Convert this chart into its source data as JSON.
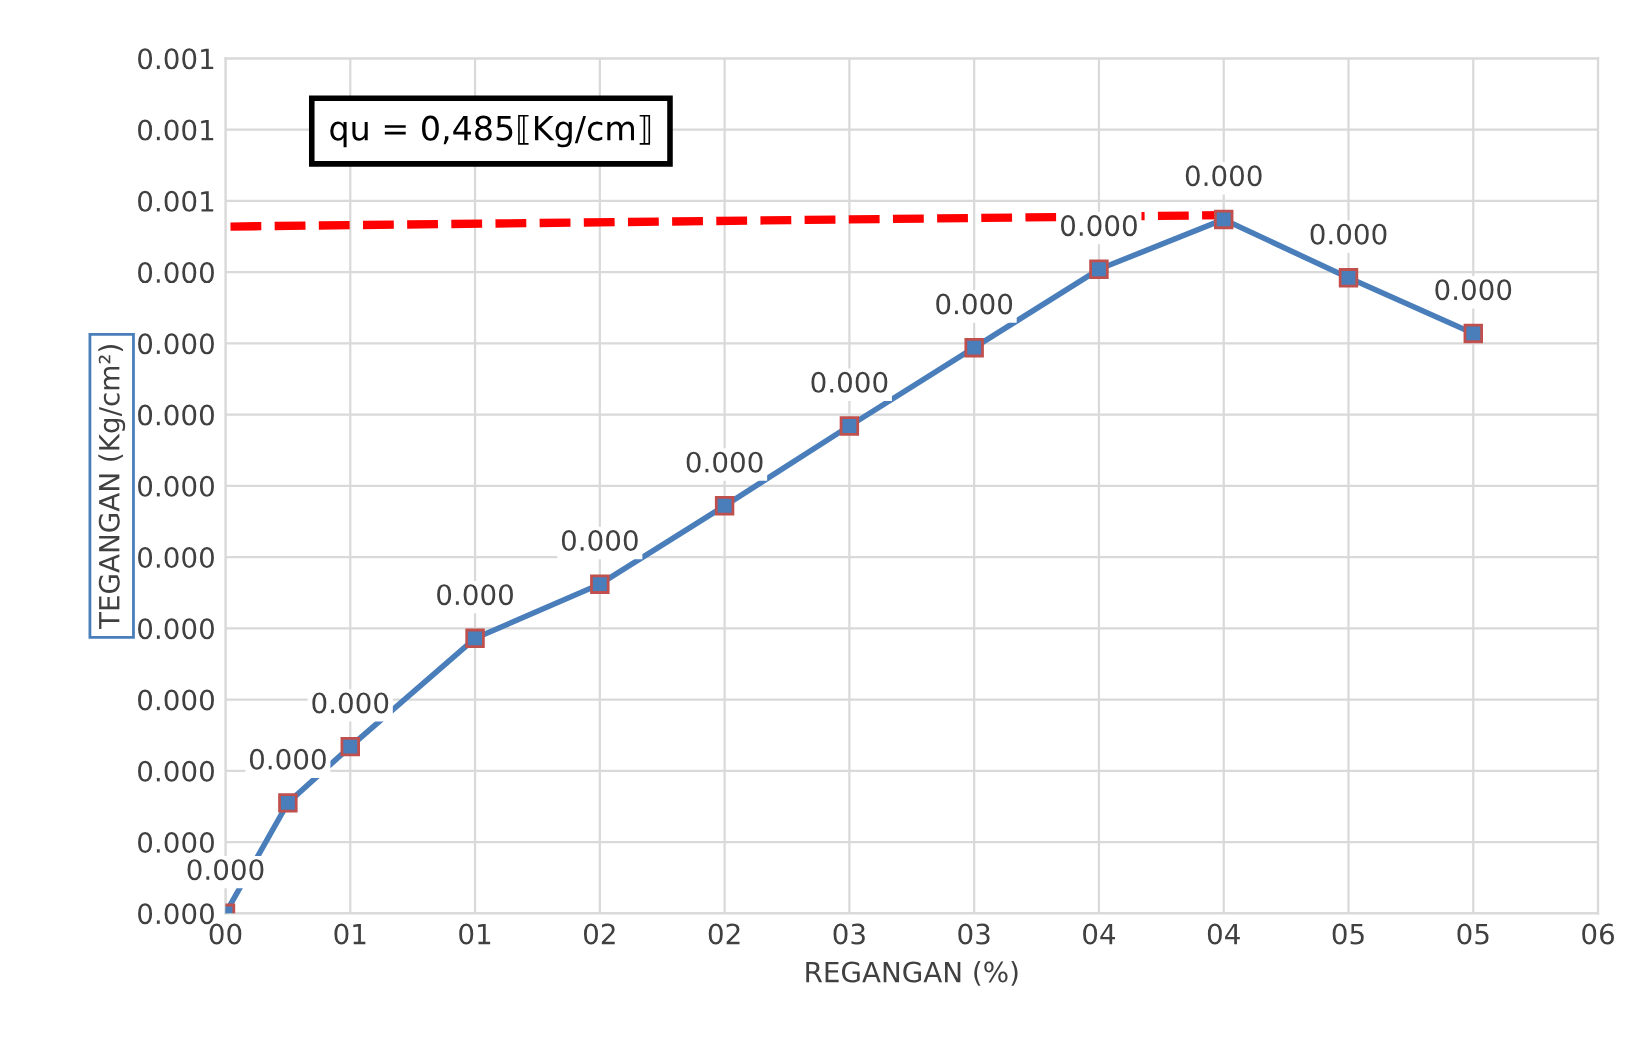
{
  "chart_data": {
    "type": "line",
    "xlabel": "REGANGAN (%)",
    "ylabel": "TEGANGAN (Kg/cm²)",
    "annotations": [
      "qu = 0,485⟦Kg/cm⟧"
    ],
    "xlim": [
      0,
      5.5
    ],
    "xticks": [
      {
        "value": 0,
        "label": "00"
      },
      {
        "value": 0.5,
        "label": "01"
      },
      {
        "value": 1.0,
        "label": "01"
      },
      {
        "value": 1.5,
        "label": "02"
      },
      {
        "value": 2.0,
        "label": "02"
      },
      {
        "value": 2.5,
        "label": "03"
      },
      {
        "value": 3.0,
        "label": "03"
      },
      {
        "value": 3.5,
        "label": "04"
      },
      {
        "value": 4.0,
        "label": "04"
      },
      {
        "value": 4.5,
        "label": "05"
      },
      {
        "value": 5.0,
        "label": "05"
      },
      {
        "value": 5.5,
        "label": "06"
      }
    ],
    "ylim": [
      0,
      0.0006
    ],
    "yticks": [
      {
        "value": 0,
        "label": "0.000"
      },
      {
        "value": 5e-05,
        "label": "0.000"
      },
      {
        "value": 0.0001,
        "label": "0.000"
      },
      {
        "value": 0.00015,
        "label": "0.000"
      },
      {
        "value": 0.0002,
        "label": "0.000"
      },
      {
        "value": 0.00025,
        "label": "0.000"
      },
      {
        "value": 0.0003,
        "label": "0.000"
      },
      {
        "value": 0.00035,
        "label": "0.000"
      },
      {
        "value": 0.0004,
        "label": "0.000"
      },
      {
        "value": 0.00045,
        "label": "0.000"
      },
      {
        "value": 0.0005,
        "label": "0.001"
      },
      {
        "value": 0.00055,
        "label": "0.001"
      },
      {
        "value": 0.0006,
        "label": "0.001"
      }
    ],
    "grid": true,
    "series": [
      {
        "color": "#4a7ebb",
        "marker": "square",
        "line_style": "solid",
        "x": [
          0,
          0.25,
          0.5,
          1.0,
          1.5,
          2.0,
          2.5,
          3.0,
          3.5,
          4.0,
          4.5,
          5.0
        ],
        "values": [
          0,
          7.75e-05,
          0.000117,
          0.000193,
          0.000231,
          0.000286,
          0.000342,
          0.000397,
          0.000452,
          0.000487,
          0.000446,
          0.000407
        ],
        "value_labels": [
          "0.000",
          "0.000",
          "0.000",
          "0.000",
          "0.000",
          "0.000",
          "0.000",
          "0.000",
          "0.000",
          "0.000",
          "0.000",
          "0.000"
        ]
      },
      {
        "color": "#ff0000",
        "marker": "none",
        "line_style": "dashed",
        "x": [
          0.02,
          4.0
        ],
        "values": [
          0.000482,
          0.00049
        ]
      }
    ]
  }
}
